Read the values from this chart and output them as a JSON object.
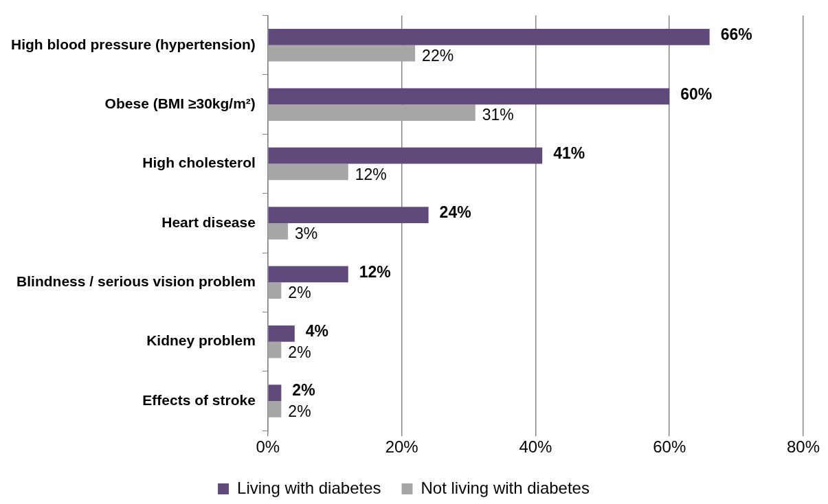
{
  "chart_data": {
    "type": "bar",
    "orientation": "horizontal",
    "categories": [
      "High blood pressure (hypertension)",
      "Obese (BMI ≥30kg/m²)",
      "High cholesterol",
      "Heart disease",
      "Blindness / serious vision problem",
      "Kidney problem",
      "Effects of stroke"
    ],
    "series": [
      {
        "name": "Living with diabetes",
        "color": "#604a7b",
        "values": [
          66,
          60,
          41,
          24,
          12,
          4,
          2
        ],
        "value_labels": [
          "66%",
          "60%",
          "41%",
          "24%",
          "12%",
          "4%",
          "2%"
        ]
      },
      {
        "name": "Not living with diabetes",
        "color": "#a6a6a6",
        "values": [
          22,
          31,
          12,
          3,
          2,
          2,
          2
        ],
        "value_labels": [
          "22%",
          "31%",
          "12%",
          "3%",
          "2%",
          "2%",
          "2%"
        ]
      }
    ],
    "xlim": [
      0,
      80
    ],
    "xticks": [
      {
        "value": 0,
        "label": "0%"
      },
      {
        "value": 20,
        "label": "20%"
      },
      {
        "value": 40,
        "label": "40%"
      },
      {
        "value": 60,
        "label": "60%"
      },
      {
        "value": 80,
        "label": "80%"
      }
    ],
    "grid": "x",
    "legend": "bottom"
  }
}
